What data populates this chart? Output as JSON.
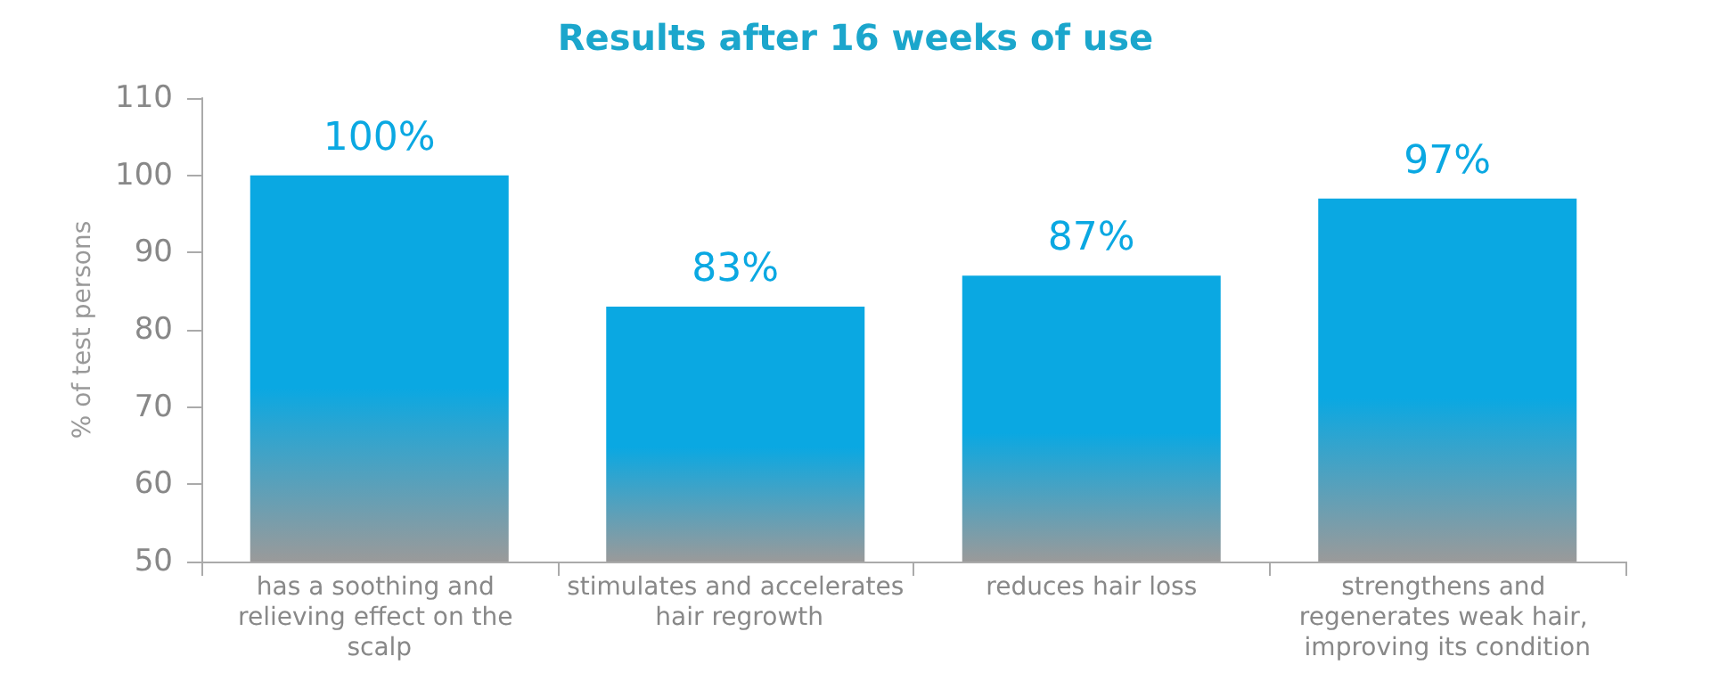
{
  "chart_data": {
    "type": "bar",
    "title": "Results after 16 weeks of use",
    "ylabel": "% of test persons",
    "categories": [
      "has a soothing and relieving effect on the scalp",
      "stimulates and accelerates hair regrowth",
      "reduces hair loss",
      "strengthens and regenerates weak hair, improving its condition"
    ],
    "values": [
      100,
      83,
      87,
      97
    ],
    "color": "#0aa8e2",
    "value_labels": [
      "100%",
      "83%",
      "87%",
      "97%"
    ],
    "ylim": [
      50,
      110
    ],
    "yticks": [
      50,
      60,
      70,
      80,
      90,
      100,
      110
    ],
    "grid": false
  }
}
